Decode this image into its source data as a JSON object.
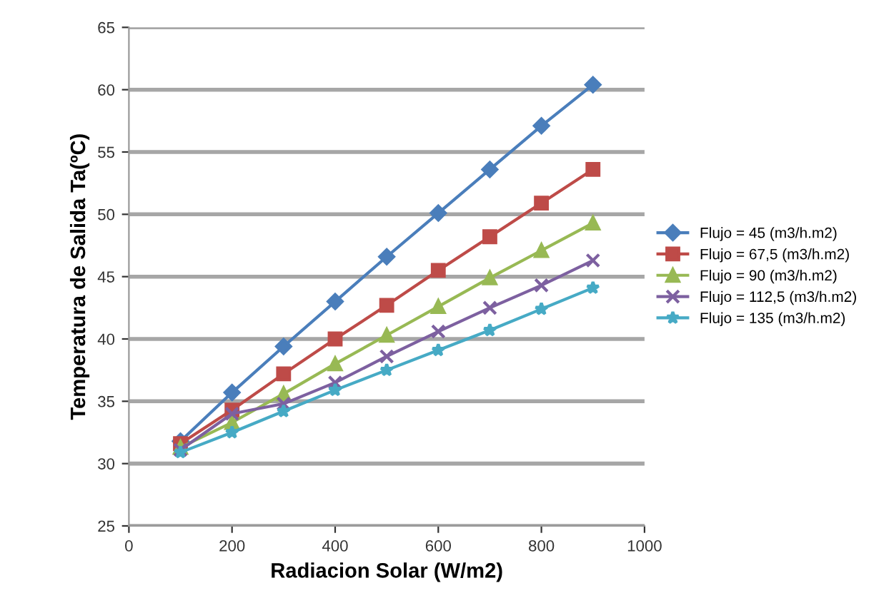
{
  "chart_data": {
    "type": "line",
    "xlabel": "Radiacion Solar (W/m2)",
    "ylabel": "Temperatura de Salida Ta(ºC)",
    "x": [
      100,
      200,
      300,
      400,
      500,
      600,
      700,
      800,
      900
    ],
    "xlim": [
      0,
      1000
    ],
    "xticks": [
      0,
      200,
      400,
      600,
      800,
      1000
    ],
    "ylim": [
      25,
      65
    ],
    "yticks": [
      25,
      30,
      35,
      40,
      45,
      50,
      55,
      60,
      65
    ],
    "grid": "y",
    "legend": "right",
    "series": [
      {
        "name": "Flujo = 45 (m3/h.m2)",
        "color": "#4a7ebb",
        "marker": "diamond",
        "values": [
          31.8,
          35.7,
          39.4,
          43.0,
          46.6,
          50.1,
          53.6,
          57.1,
          60.4
        ]
      },
      {
        "name": "Flujo = 67,5 (m3/h.m2)",
        "color": "#be4b48",
        "marker": "square",
        "values": [
          31.6,
          34.3,
          37.2,
          40.0,
          42.7,
          45.5,
          48.2,
          50.9,
          53.6
        ]
      },
      {
        "name": "Flujo = 90 (m3/h.m2)",
        "color": "#98b954",
        "marker": "triangle",
        "values": [
          31.3,
          33.3,
          35.6,
          38.0,
          40.3,
          42.6,
          44.9,
          47.1,
          49.3
        ]
      },
      {
        "name": "Flujo = 112,5 (m3/h.m2)",
        "color": "#7d60a0",
        "marker": "cross",
        "values": [
          31.1,
          34.0,
          34.8,
          36.5,
          38.6,
          40.6,
          42.5,
          44.3,
          46.3
        ]
      },
      {
        "name": "Flujo = 135 (m3/h.m2)",
        "color": "#46aac5",
        "marker": "star",
        "values": [
          30.9,
          32.5,
          34.2,
          35.9,
          37.5,
          39.1,
          40.7,
          42.4,
          44.1
        ]
      }
    ]
  }
}
